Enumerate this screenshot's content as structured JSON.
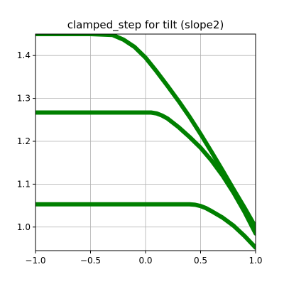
{
  "chart_data": {
    "type": "line",
    "title": "clamped_step for tilt (slope2)",
    "xlabel": "",
    "ylabel": "",
    "xlim": [
      -1.0,
      1.0
    ],
    "ylim": [
      0.945,
      1.45
    ],
    "grid": true,
    "x_ticks": [
      -1.0,
      -0.5,
      0.0,
      0.5,
      1.0
    ],
    "x_tick_labels": [
      "−1.0",
      "−0.5",
      "0.0",
      "0.5",
      "1.0"
    ],
    "y_ticks": [
      1.0,
      1.1,
      1.2,
      1.3,
      1.4
    ],
    "y_tick_labels": [
      "1.0",
      "1.1",
      "1.2",
      "1.3",
      "1.4"
    ],
    "series_color": "#008000",
    "series": [
      {
        "x": [
          -1.0,
          -0.5,
          -0.3,
          -0.2,
          -0.1,
          0.0,
          0.1,
          0.2,
          0.3,
          0.4,
          0.5,
          0.6,
          0.7,
          0.8,
          0.9,
          1.0
        ],
        "y": [
          1.45,
          1.45,
          1.448,
          1.437,
          1.42,
          1.395,
          1.363,
          1.329,
          1.294,
          1.257,
          1.217,
          1.175,
          1.132,
          1.088,
          1.045,
          1.0
        ]
      },
      {
        "x": [
          -1.0,
          -0.5,
          0.0,
          0.05,
          0.1,
          0.15,
          0.2,
          0.3,
          0.4,
          0.5,
          0.6,
          0.7,
          0.8,
          0.9,
          1.0
        ],
        "y": [
          1.267,
          1.267,
          1.267,
          1.267,
          1.265,
          1.26,
          1.253,
          1.233,
          1.21,
          1.185,
          1.155,
          1.12,
          1.08,
          1.035,
          0.985
        ]
      },
      {
        "x": [
          -1.0,
          -0.5,
          0.0,
          0.3,
          0.4,
          0.45,
          0.5,
          0.55,
          0.6,
          0.7,
          0.8,
          0.9,
          1.0
        ],
        "y": [
          1.053,
          1.053,
          1.053,
          1.053,
          1.053,
          1.052,
          1.049,
          1.044,
          1.037,
          1.022,
          1.003,
          0.979,
          0.952
        ]
      }
    ]
  }
}
